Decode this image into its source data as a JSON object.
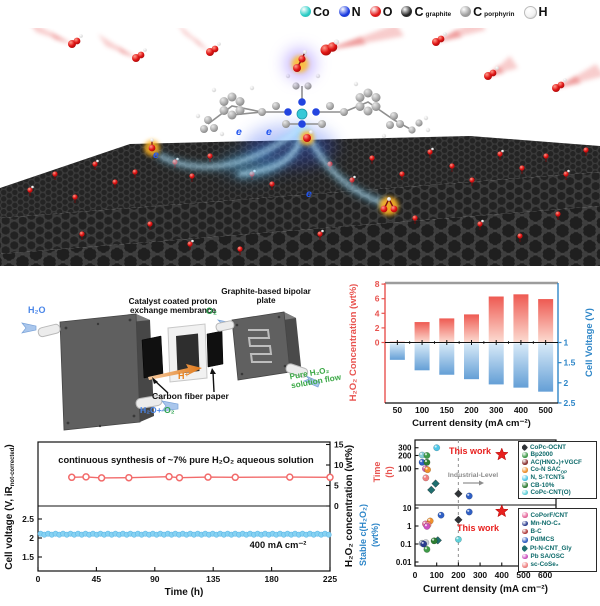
{
  "figure": {
    "background": "#ffffff"
  },
  "atom_legend": {
    "items": [
      {
        "label": "Co",
        "sub": "",
        "color": "#23cbc4"
      },
      {
        "label": "N",
        "sub": "",
        "color": "#1436e0"
      },
      {
        "label": "O",
        "sub": "",
        "color": "#e21212"
      },
      {
        "label": "C",
        "sub": "graphite",
        "color": "#202020"
      },
      {
        "label": "C",
        "sub": "porphyrin",
        "color": "#9b9b9b"
      },
      {
        "label": "H",
        "sub": "",
        "color": "#f2f2f2"
      }
    ]
  },
  "illustration": {
    "electron_label": "e"
  },
  "device": {
    "labels": {
      "h2o": "H₂O",
      "o2": "O₂",
      "h_plus": "H⁺",
      "h2o_plus": "H₂O+",
      "membrane": "Catalyst coated proton exchange membrance",
      "bipolar": "Graphite-based bipolar plate",
      "cfp": "Carbon fiber paper",
      "pure_flow": "Pure H₂O₂ solution flow"
    },
    "colors": {
      "h2o": "#4a86e8",
      "o2": "#2ea44f",
      "h_plus": "#e8821e",
      "pure": "#3aa845"
    }
  },
  "chart_data": [
    {
      "id": "h2o2_bars",
      "type": "bar",
      "categories": [
        50,
        100,
        150,
        200,
        300,
        400,
        500
      ],
      "series": [
        {
          "name": "H₂O₂ Concentration (wt%)",
          "axis": "left",
          "values": [
            0.1,
            2.8,
            3.3,
            3.85,
            6.3,
            6.6,
            5.95
          ],
          "color_top": "#ee5a52",
          "color_bottom": "#fcdcd2"
        },
        {
          "name": "Cell Voltage (V)",
          "axis": "right",
          "values": [
            1.43,
            1.69,
            1.8,
            1.91,
            2.04,
            2.12,
            2.22
          ],
          "color_top": "#d8eaf8",
          "color_bottom": "#649fd6"
        }
      ],
      "left_axis": {
        "label": "H₂O₂ Concentration (wt%)",
        "ticks": [
          0,
          2,
          4,
          6,
          8
        ],
        "color": "#e8534f"
      },
      "right_axis": {
        "label": "Cell Voltage (V)",
        "ticks": [
          1,
          1.5,
          2,
          2.5
        ],
        "inverted": true,
        "color": "#2e86c8"
      },
      "xlabel": "Current density (mA cm⁻²)"
    },
    {
      "id": "stability",
      "type": "line",
      "xlabel": "Time (h)",
      "x_ticks": [
        0,
        45,
        90,
        135,
        180,
        225
      ],
      "x_range": [
        0,
        225
      ],
      "annotation": "continuous synthesis of ~7% pure H₂O₂ aqueous solution",
      "annotation2": "400 mA cm⁻²",
      "left_axis": {
        "label_pre": "Cell voltage (V, iR",
        "label_sub": "not-corrected",
        "label_post": ")",
        "ticks": [
          1.5,
          2,
          2.5
        ]
      },
      "right_axis": {
        "label": "H₂O₂ concentration (wt%)",
        "ticks": [
          0,
          5,
          10,
          15
        ]
      },
      "red_series": {
        "name": "H₂O₂ concentration",
        "color": "#f26b6b",
        "points": [
          [
            26,
            7.0
          ],
          [
            37,
            7.1
          ],
          [
            49,
            6.85
          ],
          [
            70,
            6.9
          ],
          [
            101,
            7.15
          ],
          [
            109,
            6.9
          ],
          [
            131,
            7.05
          ],
          [
            152,
            7.0
          ],
          [
            194,
            7.05
          ],
          [
            225,
            7.0
          ]
        ]
      },
      "blue_series": {
        "name": "Cell voltage",
        "color": "#86d2f2",
        "edge": "#5fb8e8",
        "value": 2.1,
        "t_start": 2,
        "t_end": 224,
        "n_points": 78
      }
    },
    {
      "id": "comparison",
      "type": "scatter",
      "xlabel": "Current density (mA cm⁻²)",
      "x_ticks": [
        0,
        100,
        200,
        300,
        400,
        500,
        600
      ],
      "x_range": [
        0,
        650
      ],
      "dashed_line_x": 200,
      "industrial_label": "Industrial-Level",
      "this_work_label": "This work",
      "star_color": "#e8201e",
      "top_panel": {
        "ylabel_1": "Time",
        "ylabel_2": "(h)",
        "ylabel_color": "#e8534f",
        "scale": "log",
        "ticks": [
          100,
          200,
          300
        ],
        "star": {
          "x": 400,
          "y": 210
        },
        "points": [
          {
            "x": 100,
            "y": 300,
            "color": "#4fc7e8"
          },
          {
            "x": 33,
            "y": 205,
            "color": "#86ccd4"
          },
          {
            "x": 55,
            "y": 200,
            "color": "#3f9a48"
          },
          {
            "x": 33,
            "y": 140,
            "color": "#2f5fc4"
          },
          {
            "x": 55,
            "y": 140,
            "color": "#2e7d32"
          },
          {
            "x": 48,
            "y": 100,
            "color": "#d45fa8"
          },
          {
            "x": 58,
            "y": 95,
            "color": "#f0902c"
          },
          {
            "x": 50,
            "y": 62,
            "color": "#f08080"
          },
          {
            "x": 75,
            "y": 33,
            "color": "#1f6f6f",
            "shape": "diamond"
          },
          {
            "x": 95,
            "y": 46,
            "color": "#1f6f6f",
            "shape": "diamond"
          },
          {
            "x": 200,
            "y": 27,
            "color": "#2f3337",
            "shape": "diamond"
          },
          {
            "x": 250,
            "y": 24,
            "color": "#2f5fc4"
          }
        ]
      },
      "bottom_panel": {
        "ylabel_1": "Stable c(H₂O₂)",
        "ylabel_2": "(wt%)",
        "ylabel_color": "#2e86c8",
        "scale": "log",
        "ticks": [
          10,
          1,
          0.1,
          0.01
        ],
        "star": {
          "x": 400,
          "y": 6.5
        },
        "points": [
          {
            "x": 250,
            "y": 6,
            "color": "#2f5fc4"
          },
          {
            "x": 120,
            "y": 4,
            "color": "#2f5fc4"
          },
          {
            "x": 200,
            "y": 2.2,
            "color": "#2f3337",
            "shape": "diamond"
          },
          {
            "x": 70,
            "y": 1.9,
            "color": "#f0902c"
          },
          {
            "x": 48,
            "y": 1.3,
            "color": "#e8699d"
          },
          {
            "x": 60,
            "y": 1.15,
            "color": "#f08080"
          },
          {
            "x": 55,
            "y": 0.95,
            "color": "#cc4fc0"
          },
          {
            "x": 105,
            "y": 0.16,
            "color": "#1f6f6f",
            "shape": "diamond"
          },
          {
            "x": 88,
            "y": 0.15,
            "color": "#2e7d32"
          },
          {
            "x": 200,
            "y": 0.18,
            "color": "#5fd0d8"
          },
          {
            "x": 33,
            "y": 0.11,
            "color": "#9aa7b5"
          },
          {
            "x": 50,
            "y": 0.12,
            "color": "#c9cfd6"
          },
          {
            "x": 40,
            "y": 0.1,
            "color": "#2b3c8f"
          },
          {
            "x": 55,
            "y": 0.05,
            "color": "#3f9a48"
          }
        ]
      },
      "legend_top": {
        "entries": [
          {
            "label": "CoPc-OCNT",
            "color": "#2f3337",
            "shape": "diamond"
          },
          {
            "label": "Bp2000",
            "color": "#3f9a48"
          },
          {
            "label": "AC(HNO₃)+VGCF",
            "color": "#8a3030"
          },
          {
            "label": "Co-N SAC",
            "sub": "OP",
            "color": "#f0902c"
          },
          {
            "label": "N, S-TCNTs",
            "color": "#4fc7e8"
          },
          {
            "label": "CB-10%",
            "color": "#2e7d32"
          },
          {
            "label": "CoPc-CNT(O)",
            "color": "#5fd0d8"
          }
        ]
      },
      "legend_bottom": {
        "entries": [
          {
            "label": "CoPorF/CNT",
            "color": "#e8699d"
          },
          {
            "label": "Mn-NO-C₃",
            "color": "#2b3c8f"
          },
          {
            "label": "B-C",
            "color": "#b03a3a"
          },
          {
            "label": "Pd/MCS",
            "color": "#2f5fc4"
          },
          {
            "label": "Pt-N-CNT_Gly",
            "color": "#1f6f6f",
            "shape": "diamond"
          },
          {
            "label": "Pb SA/OSC",
            "color": "#cc4fc0"
          },
          {
            "label": "sc-CoSe₂",
            "color": "#f08080"
          }
        ]
      }
    }
  ]
}
